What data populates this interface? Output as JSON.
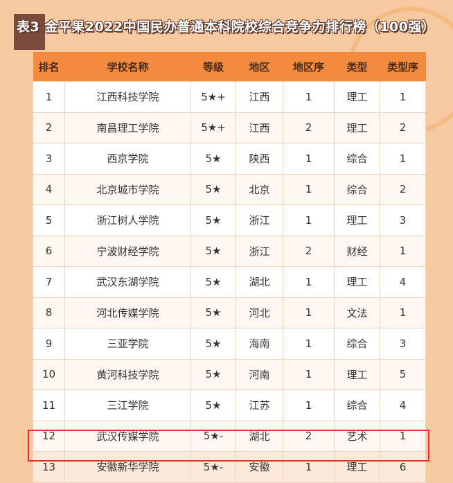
{
  "title": "表3  金平果2022中国民办普通本科院校综合竞争力排行榜（100强）",
  "colors": {
    "header": "#f28b3d",
    "background": "#f7c9a0",
    "highlight_border": "#e0302a"
  },
  "columns": [
    "排名",
    "学校名称",
    "等级",
    "地区",
    "地区序",
    "类型",
    "类型序"
  ],
  "rows": [
    [
      "1",
      "江西科技学院",
      "5★+",
      "江西",
      "1",
      "理工",
      "1"
    ],
    [
      "2",
      "南昌理工学院",
      "5★+",
      "江西",
      "2",
      "理工",
      "2"
    ],
    [
      "3",
      "西京学院",
      "5★",
      "陕西",
      "1",
      "综合",
      "1"
    ],
    [
      "4",
      "北京城市学院",
      "5★",
      "北京",
      "1",
      "综合",
      "2"
    ],
    [
      "5",
      "浙江树人学院",
      "5★",
      "浙江",
      "1",
      "理工",
      "3"
    ],
    [
      "6",
      "宁波财经学院",
      "5★",
      "浙江",
      "2",
      "财经",
      "1"
    ],
    [
      "7",
      "武汉东湖学院",
      "5★",
      "湖北",
      "1",
      "理工",
      "4"
    ],
    [
      "8",
      "河北传媒学院",
      "5★",
      "河北",
      "1",
      "文法",
      "1"
    ],
    [
      "9",
      "三亚学院",
      "5★",
      "海南",
      "1",
      "综合",
      "3"
    ],
    [
      "10",
      "黄河科技学院",
      "5★",
      "河南",
      "1",
      "理工",
      "5"
    ],
    [
      "11",
      "三江学院",
      "5★",
      "江苏",
      "1",
      "综合",
      "4"
    ],
    [
      "12",
      "武汉传媒学院",
      "5★-",
      "湖北",
      "2",
      "艺术",
      "1"
    ],
    [
      "13",
      "安徽新华学院",
      "5★-",
      "安徽",
      "1",
      "理工",
      "6"
    ]
  ],
  "highlighted_row": "13"
}
